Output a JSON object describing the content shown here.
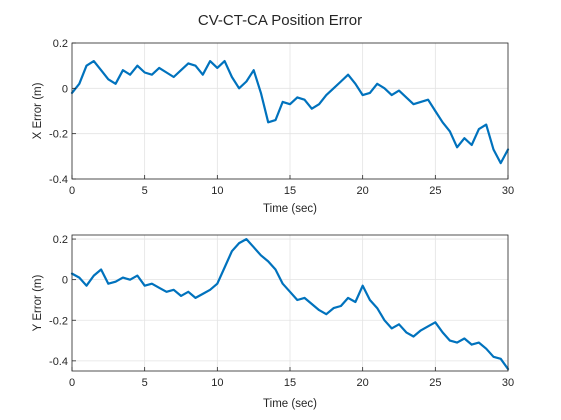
{
  "figure": {
    "title": "CV-CT-CA Position Error",
    "line_color": "#0072BD"
  },
  "chart_data": [
    {
      "type": "line",
      "title": "CV-CT-CA Position Error",
      "xlabel": "Time (sec)",
      "ylabel": "X Error (m)",
      "xlim": [
        0,
        30
      ],
      "ylim": [
        -0.4,
        0.2
      ],
      "xticks": [
        0,
        5,
        10,
        15,
        20,
        25,
        30
      ],
      "yticks": [
        0.2,
        0,
        -0.2,
        -0.4
      ],
      "xtick_labels": [
        "0",
        "5",
        "10",
        "15",
        "20",
        "25",
        "30"
      ],
      "ytick_labels": [
        "0.2",
        "0",
        "-0.2",
        "-0.4"
      ],
      "grid": true,
      "series": [
        {
          "color": "#0072BD",
          "x": [
            0,
            0.5,
            1,
            1.5,
            2,
            2.5,
            3,
            3.5,
            4,
            4.5,
            5,
            5.5,
            6,
            6.5,
            7,
            7.5,
            8,
            8.5,
            9,
            9.5,
            10,
            10.5,
            11,
            11.5,
            12,
            12.5,
            13,
            13.5,
            14,
            14.5,
            15,
            15.5,
            16,
            16.5,
            17,
            17.5,
            18,
            18.5,
            19,
            19.5,
            20,
            20.5,
            21,
            21.5,
            22,
            22.5,
            23,
            23.5,
            24,
            24.5,
            25,
            25.5,
            26,
            26.5,
            27,
            27.5,
            28,
            28.5,
            29,
            29.5,
            30
          ],
          "y": [
            -0.02,
            0.02,
            0.1,
            0.12,
            0.08,
            0.04,
            0.02,
            0.08,
            0.06,
            0.1,
            0.07,
            0.06,
            0.09,
            0.07,
            0.05,
            0.08,
            0.11,
            0.1,
            0.06,
            0.12,
            0.09,
            0.12,
            0.05,
            0.0,
            0.03,
            0.08,
            -0.02,
            -0.15,
            -0.14,
            -0.06,
            -0.07,
            -0.04,
            -0.05,
            -0.09,
            -0.07,
            -0.03,
            0.0,
            0.03,
            0.06,
            0.02,
            -0.03,
            -0.02,
            0.02,
            0.0,
            -0.03,
            -0.01,
            -0.04,
            -0.07,
            -0.06,
            -0.05,
            -0.1,
            -0.15,
            -0.19,
            -0.26,
            -0.22,
            -0.25,
            -0.18,
            -0.16,
            -0.27,
            -0.33,
            -0.27
          ]
        }
      ]
    },
    {
      "type": "line",
      "xlabel": "Time (sec)",
      "ylabel": "Y Error (m)",
      "xlim": [
        0,
        30
      ],
      "ylim": [
        -0.45,
        0.22
      ],
      "xticks": [
        0,
        5,
        10,
        15,
        20,
        25,
        30
      ],
      "yticks": [
        0.2,
        0,
        -0.2,
        -0.4
      ],
      "xtick_labels": [
        "0",
        "5",
        "10",
        "15",
        "20",
        "25",
        "30"
      ],
      "ytick_labels": [
        "0.2",
        "0",
        "-0.2",
        "-0.4"
      ],
      "grid": true,
      "series": [
        {
          "color": "#0072BD",
          "x": [
            0,
            0.5,
            1,
            1.5,
            2,
            2.5,
            3,
            3.5,
            4,
            4.5,
            5,
            5.5,
            6,
            6.5,
            7,
            7.5,
            8,
            8.5,
            9,
            9.5,
            10,
            10.5,
            11,
            11.5,
            12,
            12.5,
            13,
            13.5,
            14,
            14.5,
            15,
            15.5,
            16,
            16.5,
            17,
            17.5,
            18,
            18.5,
            19,
            19.5,
            20,
            20.5,
            21,
            21.5,
            22,
            22.5,
            23,
            23.5,
            24,
            24.5,
            25,
            25.5,
            26,
            26.5,
            27,
            27.5,
            28,
            28.5,
            29,
            29.5,
            30
          ],
          "y": [
            0.03,
            0.01,
            -0.03,
            0.02,
            0.05,
            -0.02,
            -0.01,
            0.01,
            0.0,
            0.02,
            -0.03,
            -0.02,
            -0.04,
            -0.06,
            -0.05,
            -0.08,
            -0.06,
            -0.09,
            -0.07,
            -0.05,
            -0.02,
            0.06,
            0.14,
            0.18,
            0.2,
            0.16,
            0.12,
            0.09,
            0.05,
            -0.02,
            -0.06,
            -0.1,
            -0.09,
            -0.12,
            -0.15,
            -0.17,
            -0.14,
            -0.13,
            -0.09,
            -0.11,
            -0.03,
            -0.1,
            -0.14,
            -0.2,
            -0.24,
            -0.22,
            -0.26,
            -0.28,
            -0.25,
            -0.23,
            -0.21,
            -0.26,
            -0.3,
            -0.31,
            -0.29,
            -0.32,
            -0.31,
            -0.34,
            -0.38,
            -0.39,
            -0.44
          ]
        }
      ]
    }
  ]
}
